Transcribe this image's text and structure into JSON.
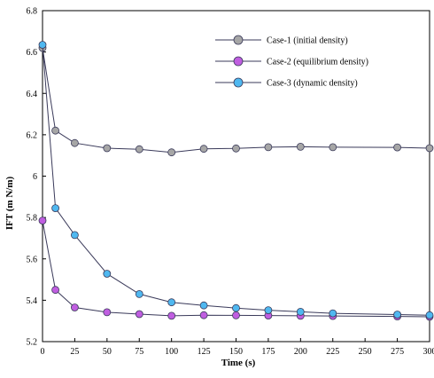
{
  "chart_data": {
    "type": "line",
    "title": "",
    "xlabel": "Time (s)",
    "ylabel": "IFT (m N/m)",
    "xlim": [
      0,
      300
    ],
    "ylim": [
      5.2,
      6.8
    ],
    "x_ticks": [
      0,
      25,
      50,
      75,
      100,
      125,
      150,
      175,
      200,
      225,
      250,
      275,
      300
    ],
    "y_ticks": [
      5.2,
      5.4,
      5.6,
      5.8,
      6.0,
      6.2,
      6.4,
      6.6,
      6.8
    ],
    "y_tick_labels": [
      "5.2",
      "5.4",
      "5.6",
      "5.8",
      "6",
      "6.2",
      "6.4",
      "6.6",
      "6.8"
    ],
    "grid": false,
    "legend_position": "top-right",
    "series": [
      {
        "name": "Case-1 (initial density)",
        "color": "#a6a6a6",
        "x": [
          0,
          10,
          25,
          50,
          75,
          100,
          125,
          150,
          175,
          200,
          225,
          275,
          300
        ],
        "y": [
          6.62,
          6.22,
          6.16,
          6.135,
          6.13,
          6.115,
          6.132,
          6.134,
          6.14,
          6.142,
          6.14,
          6.139,
          6.135
        ]
      },
      {
        "name": "Case-2 (equilibrium density)",
        "color": "#c05ee0",
        "x": [
          0,
          10,
          25,
          50,
          75,
          100,
          125,
          150,
          175,
          200,
          225,
          275,
          300
        ],
        "y": [
          5.785,
          5.45,
          5.365,
          5.342,
          5.333,
          5.325,
          5.328,
          5.327,
          5.326,
          5.325,
          5.324,
          5.322,
          5.32
        ]
      },
      {
        "name": "Case-3 (dynamic density)",
        "color": "#4fb8f0",
        "x": [
          0,
          10,
          25,
          50,
          75,
          100,
          125,
          150,
          175,
          200,
          225,
          275,
          300
        ],
        "y": [
          6.635,
          5.845,
          5.715,
          5.528,
          5.43,
          5.39,
          5.375,
          5.362,
          5.352,
          5.344,
          5.337,
          5.331,
          5.328
        ]
      }
    ]
  }
}
